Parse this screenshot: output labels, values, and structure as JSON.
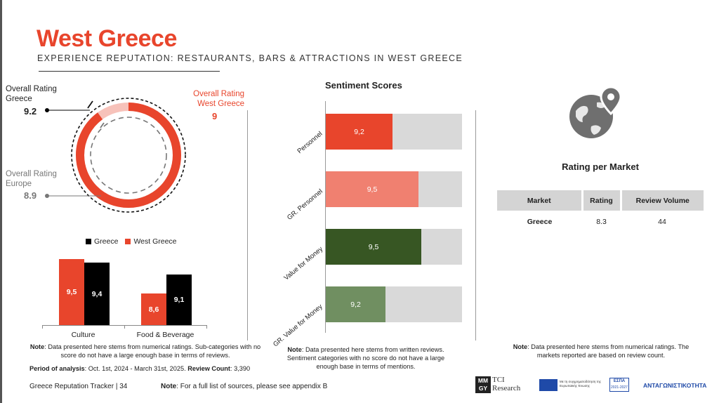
{
  "header": {
    "title": "West Greece",
    "subtitle": "EXPERIENCE REPUTATION: RESTAURANTS, BARS & ATTRACTIONS IN WEST GREECE"
  },
  "ratings": {
    "greece_label": "Overall Rating Greece",
    "greece_value": "9.2",
    "west_label": "Overall Rating West Greece",
    "west_value": "9",
    "europe_label": "Overall Rating Europe",
    "europe_value": "8.9",
    "ring_fraction": 0.9
  },
  "legend": {
    "greece": "Greece",
    "west": "West Greece"
  },
  "chart_data": {
    "type": "bar",
    "categories": [
      "Culture",
      "Food & Beverage"
    ],
    "series": [
      {
        "name": "West Greece",
        "values": [
          9.5,
          8.6
        ],
        "labels": [
          "9,5",
          "8,6"
        ],
        "color": "#e8452c"
      },
      {
        "name": "Greece",
        "values": [
          9.4,
          9.1
        ],
        "labels": [
          "9,4",
          "9,1"
        ],
        "color": "#000000"
      }
    ]
  },
  "left_note": {
    "note_label": "Note",
    "note_text": ": Data presented here stems from numerical ratings. Sub-categories with no score do not have a large enough base in terms of reviews.",
    "period_label": "Period of analysis",
    "period_text": ": Oct. 1st, 2024 - March 31st, 2025.",
    "count_label": "Review Count",
    "count_text": ": 3,390"
  },
  "sentiment": {
    "title": "Sentiment Scores",
    "items": [
      {
        "label": "Personnel",
        "value": 9.2,
        "display": "9,2",
        "fraction": 0.49,
        "color": "#e8452c"
      },
      {
        "label": "GR. Personnel",
        "value": 9.5,
        "display": "9,5",
        "fraction": 0.68,
        "color": "#f08070"
      },
      {
        "label": "Value for Money",
        "value": 9.5,
        "display": "9,5",
        "fraction": 0.7,
        "color": "#375623"
      },
      {
        "label": "GR. Value for Money",
        "value": 9.2,
        "display": "9,2",
        "fraction": 0.44,
        "color": "#708f61"
      }
    ],
    "note_label": "Note",
    "note_text": ": Data presented here stems from written reviews. Sentiment categories with no score do not have a large enough base in terms of mentions."
  },
  "market": {
    "title": "Rating per Market",
    "columns": [
      "Market",
      "Rating",
      "Review Volume"
    ],
    "rows": [
      {
        "market": "Greece",
        "rating": "8.3",
        "volume": "44"
      }
    ],
    "note_label": "Note",
    "note_text": ": Data presented here stems from numerical ratings. The markets reported are based on review count."
  },
  "footer": {
    "tracker": "Greece Reputation Tracker",
    "page": "34",
    "note_label": "Note",
    "note_text": ": For a full list of sources, please see appendix B",
    "logo_mm": "MM",
    "logo_gy": "GY",
    "logo_tci": "TCI",
    "logo_research": "Research",
    "eu_text": "Με τη συγχρηματοδότηση της Ευρωπαϊκής Ένωσης",
    "espa": "ΕΣΠΑ",
    "espa_years": "2021-2027",
    "program": "ΑΝΤΑΓΩΝΙΣΤΙΚΟΤΗΤΑ"
  },
  "icons": {
    "globe": "globe-location-icon"
  }
}
